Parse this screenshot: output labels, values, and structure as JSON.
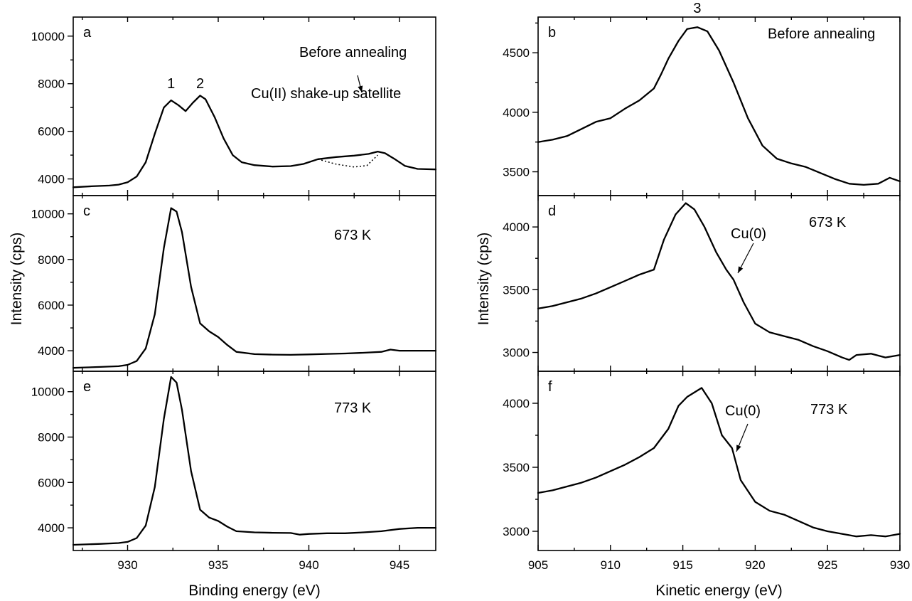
{
  "chart_data": [
    {
      "panel": "a",
      "type": "line",
      "annotations": [
        "Before annealing",
        "Cu(II) shake-up satellite"
      ],
      "peak_labels": [
        {
          "text": "1",
          "x": 932.4
        },
        {
          "text": "2",
          "x": 934.0
        }
      ],
      "xlim": [
        927,
        947
      ],
      "ylim": [
        3300,
        10800
      ],
      "yticks": [
        4000,
        6000,
        8000,
        10000
      ],
      "xticks": [
        930,
        935,
        940,
        945
      ],
      "xticklabels_visible": false,
      "points": [
        [
          927,
          3650
        ],
        [
          928,
          3690
        ],
        [
          929,
          3720
        ],
        [
          929.5,
          3760
        ],
        [
          930,
          3860
        ],
        [
          930.5,
          4100
        ],
        [
          931,
          4700
        ],
        [
          931.5,
          5900
        ],
        [
          932,
          7000
        ],
        [
          932.4,
          7300
        ],
        [
          932.8,
          7100
        ],
        [
          933.2,
          6850
        ],
        [
          933.6,
          7200
        ],
        [
          934,
          7500
        ],
        [
          934.3,
          7350
        ],
        [
          934.8,
          6600
        ],
        [
          935.3,
          5700
        ],
        [
          935.8,
          5000
        ],
        [
          936.3,
          4700
        ],
        [
          937,
          4580
        ],
        [
          938,
          4520
        ],
        [
          939,
          4540
        ],
        [
          939.7,
          4630
        ],
        [
          940.5,
          4830
        ],
        [
          941.5,
          4920
        ],
        [
          942.5,
          4980
        ],
        [
          943.3,
          5050
        ],
        [
          943.8,
          5150
        ],
        [
          944.2,
          5080
        ],
        [
          944.7,
          4850
        ],
        [
          945.3,
          4550
        ],
        [
          946,
          4420
        ],
        [
          947,
          4400
        ]
      ],
      "satellite_baseline": [
        [
          940.5,
          4830
        ],
        [
          941.5,
          4620
        ],
        [
          942.5,
          4500
        ],
        [
          943.2,
          4560
        ],
        [
          943.8,
          5000
        ]
      ]
    },
    {
      "panel": "b",
      "type": "line",
      "annotations": [
        "Before annealing"
      ],
      "peak_labels": [
        {
          "text": "3",
          "x": 916.0
        }
      ],
      "xlim": [
        905,
        930
      ],
      "ylim": [
        3300,
        4800
      ],
      "yticks": [
        3500,
        4000,
        4500
      ],
      "xticks": [
        905,
        910,
        915,
        920,
        925,
        930
      ],
      "xticklabels_visible": false,
      "points": [
        [
          905,
          3750
        ],
        [
          906,
          3770
        ],
        [
          907,
          3800
        ],
        [
          908,
          3860
        ],
        [
          909,
          3920
        ],
        [
          910,
          3950
        ],
        [
          911,
          4030
        ],
        [
          912,
          4100
        ],
        [
          913,
          4200
        ],
        [
          913.5,
          4320
        ],
        [
          914,
          4450
        ],
        [
          914.7,
          4600
        ],
        [
          915.3,
          4700
        ],
        [
          916,
          4715
        ],
        [
          916.7,
          4680
        ],
        [
          917.5,
          4520
        ],
        [
          918.5,
          4250
        ],
        [
          919.5,
          3950
        ],
        [
          920.5,
          3720
        ],
        [
          921.5,
          3610
        ],
        [
          922.5,
          3570
        ],
        [
          923.5,
          3540
        ],
        [
          924.5,
          3490
        ],
        [
          925.5,
          3440
        ],
        [
          926.5,
          3400
        ],
        [
          927.5,
          3390
        ],
        [
          928.5,
          3400
        ],
        [
          929.3,
          3450
        ],
        [
          930,
          3420
        ]
      ]
    },
    {
      "panel": "c",
      "type": "line",
      "annotations": [
        "673 K"
      ],
      "xlim": [
        927,
        947
      ],
      "ylim": [
        3100,
        10800
      ],
      "yticks": [
        4000,
        6000,
        8000,
        10000
      ],
      "xticks": [
        930,
        935,
        940,
        945
      ],
      "xticklabels_visible": false,
      "points": [
        [
          927,
          3250
        ],
        [
          928.5,
          3290
        ],
        [
          929.5,
          3320
        ],
        [
          930,
          3380
        ],
        [
          930.5,
          3550
        ],
        [
          931,
          4100
        ],
        [
          931.5,
          5600
        ],
        [
          932,
          8500
        ],
        [
          932.4,
          10250
        ],
        [
          932.7,
          10100
        ],
        [
          933,
          9200
        ],
        [
          933.5,
          6800
        ],
        [
          934,
          5200
        ],
        [
          934.5,
          4850
        ],
        [
          935,
          4600
        ],
        [
          935.5,
          4250
        ],
        [
          936,
          3950
        ],
        [
          937,
          3850
        ],
        [
          938,
          3830
        ],
        [
          939,
          3820
        ],
        [
          940,
          3840
        ],
        [
          941,
          3860
        ],
        [
          942,
          3880
        ],
        [
          943,
          3910
        ],
        [
          944,
          3950
        ],
        [
          944.5,
          4050
        ],
        [
          945,
          4000
        ],
        [
          946,
          4000
        ],
        [
          947,
          4000
        ]
      ]
    },
    {
      "panel": "d",
      "type": "line",
      "annotations": [
        "673 K",
        "Cu(0)"
      ],
      "xlim": [
        905,
        930
      ],
      "ylim": [
        2850,
        4250
      ],
      "yticks": [
        3000,
        3500,
        4000
      ],
      "xticks": [
        905,
        910,
        915,
        920,
        925,
        930
      ],
      "xticklabels_visible": false,
      "points": [
        [
          905,
          3350
        ],
        [
          906,
          3370
        ],
        [
          907,
          3400
        ],
        [
          908,
          3430
        ],
        [
          909,
          3470
        ],
        [
          910,
          3520
        ],
        [
          911,
          3570
        ],
        [
          912,
          3620
        ],
        [
          913,
          3660
        ],
        [
          913.7,
          3900
        ],
        [
          914.5,
          4100
        ],
        [
          915.2,
          4190
        ],
        [
          915.8,
          4140
        ],
        [
          916.5,
          4000
        ],
        [
          917.3,
          3800
        ],
        [
          918,
          3660
        ],
        [
          918.5,
          3580
        ],
        [
          919.2,
          3400
        ],
        [
          920,
          3230
        ],
        [
          921,
          3160
        ],
        [
          922,
          3130
        ],
        [
          923,
          3100
        ],
        [
          924,
          3050
        ],
        [
          925,
          3010
        ],
        [
          926,
          2960
        ],
        [
          926.5,
          2940
        ],
        [
          927,
          2980
        ],
        [
          928,
          2990
        ],
        [
          929,
          2960
        ],
        [
          930,
          2980
        ]
      ]
    },
    {
      "panel": "e",
      "type": "line",
      "annotations": [
        "773 K"
      ],
      "xlim": [
        927,
        947
      ],
      "ylim": [
        3000,
        10900
      ],
      "yticks": [
        4000,
        6000,
        8000,
        10000
      ],
      "xticks": [
        930,
        935,
        940,
        945
      ],
      "xticklabels": [
        "930",
        "935",
        "940",
        "945"
      ],
      "xlabel": "Binding energy (eV)",
      "points": [
        [
          927,
          3250
        ],
        [
          928.5,
          3290
        ],
        [
          929.5,
          3330
        ],
        [
          930,
          3380
        ],
        [
          930.5,
          3550
        ],
        [
          931,
          4100
        ],
        [
          931.5,
          5800
        ],
        [
          932,
          8800
        ],
        [
          932.4,
          10650
        ],
        [
          932.7,
          10400
        ],
        [
          933,
          9200
        ],
        [
          933.5,
          6500
        ],
        [
          934,
          4800
        ],
        [
          934.5,
          4450
        ],
        [
          935,
          4300
        ],
        [
          935.5,
          4050
        ],
        [
          936,
          3850
        ],
        [
          937,
          3800
        ],
        [
          938,
          3780
        ],
        [
          939,
          3770
        ],
        [
          939.5,
          3700
        ],
        [
          940,
          3730
        ],
        [
          941,
          3760
        ],
        [
          942,
          3760
        ],
        [
          943,
          3800
        ],
        [
          944,
          3850
        ],
        [
          945,
          3950
        ],
        [
          946,
          4000
        ],
        [
          947,
          4000
        ]
      ]
    },
    {
      "panel": "f",
      "type": "line",
      "annotations": [
        "773 K",
        "Cu(0)"
      ],
      "xlim": [
        905,
        930
      ],
      "ylim": [
        2850,
        4250
      ],
      "yticks": [
        3000,
        3500,
        4000
      ],
      "xticks": [
        905,
        910,
        915,
        920,
        925,
        930
      ],
      "xticklabels": [
        "905",
        "910",
        "915",
        "920",
        "925",
        "930"
      ],
      "xlabel": "Kinetic energy (eV)",
      "points": [
        [
          905,
          3300
        ],
        [
          906,
          3320
        ],
        [
          907,
          3350
        ],
        [
          908,
          3380
        ],
        [
          909,
          3420
        ],
        [
          910,
          3470
        ],
        [
          911,
          3520
        ],
        [
          912,
          3580
        ],
        [
          913,
          3650
        ],
        [
          914,
          3800
        ],
        [
          914.7,
          3980
        ],
        [
          915.3,
          4050
        ],
        [
          916.3,
          4120
        ],
        [
          917,
          4000
        ],
        [
          917.7,
          3750
        ],
        [
          918.4,
          3650
        ],
        [
          919,
          3400
        ],
        [
          920,
          3230
        ],
        [
          921,
          3160
        ],
        [
          922,
          3130
        ],
        [
          923,
          3080
        ],
        [
          924,
          3030
        ],
        [
          925,
          3000
        ],
        [
          926,
          2980
        ],
        [
          927,
          2960
        ],
        [
          928,
          2970
        ],
        [
          929,
          2960
        ],
        [
          930,
          2980
        ]
      ]
    }
  ],
  "ylabel": "Intensity (cps)"
}
